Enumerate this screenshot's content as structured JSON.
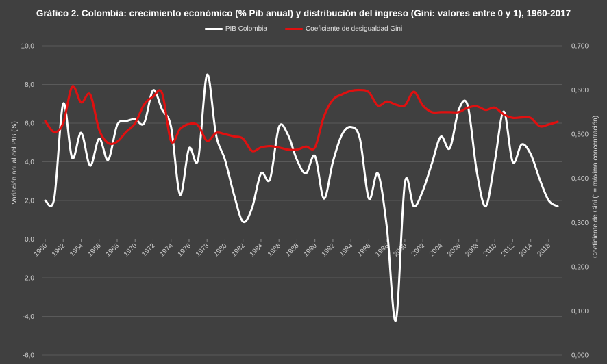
{
  "chart_data": {
    "type": "line",
    "title": "Gráfico 2. Colombia: crecimiento económico (% Pib anual) y distribución del ingreso (Gini: valores entre 0 y 1), 1960-2017",
    "ylabel_left": "Variación anual del PIB (%)",
    "ylabel_right": "Coeficiente de Gini (1= máxima concentración)",
    "ylim_left": [
      -6,
      10
    ],
    "ylim_right": [
      0,
      0.7
    ],
    "yticks_left": [
      "10,0",
      "8,0",
      "6,0",
      "4,0",
      "2,0",
      "0,0",
      "-2,0",
      "-4,0",
      "-6,0"
    ],
    "yticks_right": [
      "0,700",
      "0,600",
      "0,500",
      "0,400",
      "0,300",
      "0,200",
      "0,100",
      "0,000"
    ],
    "xticks": [
      "1960",
      "1962",
      "1964",
      "1966",
      "1968",
      "1970",
      "1972",
      "1974",
      "1976",
      "1978",
      "1980",
      "1982",
      "1984",
      "1986",
      "1988",
      "1990",
      "1992",
      "1994",
      "1996",
      "1998",
      "2000",
      "2002",
      "2004",
      "2006",
      "2008",
      "2010",
      "2012",
      "2014",
      "2016"
    ],
    "legend_position": "top",
    "grid": "horizontal",
    "x": [
      1960,
      1961,
      1962,
      1963,
      1964,
      1965,
      1966,
      1967,
      1968,
      1969,
      1970,
      1971,
      1972,
      1973,
      1974,
      1975,
      1976,
      1977,
      1978,
      1979,
      1980,
      1981,
      1982,
      1983,
      1984,
      1985,
      1986,
      1987,
      1988,
      1989,
      1990,
      1991,
      1992,
      1993,
      1994,
      1995,
      1996,
      1997,
      1998,
      1999,
      2000,
      2001,
      2002,
      2003,
      2004,
      2005,
      2006,
      2007,
      2008,
      2009,
      2010,
      2011,
      2012,
      2013,
      2014,
      2015,
      2016,
      2017
    ],
    "series": [
      {
        "name": "PIB Colombia",
        "axis": "left",
        "color": "#ffffff",
        "values": [
          2.0,
          2.1,
          7.0,
          4.2,
          5.5,
          3.8,
          5.2,
          4.1,
          5.9,
          6.1,
          6.2,
          6.0,
          7.7,
          6.7,
          5.8,
          2.3,
          4.7,
          4.1,
          8.5,
          5.4,
          4.1,
          2.3,
          0.9,
          1.6,
          3.4,
          3.1,
          5.8,
          5.4,
          4.1,
          3.4,
          4.3,
          2.1,
          4.0,
          5.4,
          5.8,
          5.2,
          2.1,
          3.4,
          0.6,
          -4.2,
          2.9,
          1.7,
          2.5,
          3.9,
          5.3,
          4.7,
          6.7,
          6.9,
          3.5,
          1.7,
          4.0,
          6.6,
          4.0,
          4.9,
          4.4,
          3.1,
          2.0,
          1.7
        ]
      },
      {
        "name": "Coeficiente de desigualdad Gini",
        "axis": "right",
        "color": "#e01010",
        "values": [
          0.53,
          0.505,
          0.525,
          0.608,
          0.572,
          0.59,
          0.51,
          0.48,
          0.483,
          0.505,
          0.525,
          0.567,
          0.585,
          0.593,
          0.484,
          0.512,
          0.523,
          0.52,
          0.485,
          0.503,
          0.5,
          0.495,
          0.49,
          0.462,
          0.47,
          0.473,
          0.47,
          0.465,
          0.465,
          0.472,
          0.47,
          0.54,
          0.578,
          0.59,
          0.598,
          0.6,
          0.595,
          0.565,
          0.574,
          0.567,
          0.565,
          0.596,
          0.565,
          0.55,
          0.55,
          0.55,
          0.55,
          0.56,
          0.563,
          0.555,
          0.56,
          0.545,
          0.537,
          0.538,
          0.537,
          0.518,
          0.522,
          0.528
        ]
      }
    ]
  }
}
